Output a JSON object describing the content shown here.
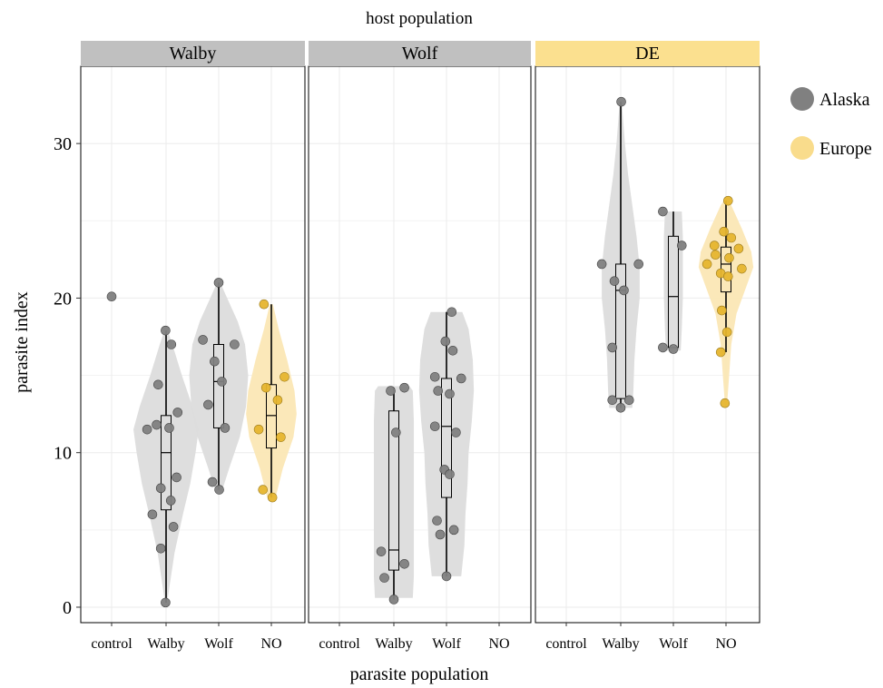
{
  "chart_data": {
    "type": "violin-box-scatter",
    "title": "host population",
    "xlabel": "parasite population",
    "ylabel": "parasite index",
    "ylim": [
      -1,
      35
    ],
    "yticks": [
      0,
      10,
      20,
      30
    ],
    "categories": [
      "control",
      "Walby",
      "Wolf",
      "NO"
    ],
    "grid": true,
    "legend": {
      "position": "right",
      "entries": [
        {
          "name": "Alaska",
          "color": "#808080"
        },
        {
          "name": "Europe",
          "color": "#f9dc8c"
        }
      ]
    },
    "colors": {
      "alaska_point": "#808080",
      "europe_point": "#e6b52e",
      "alaska_violin": "#dcdcdc",
      "europe_violin": "#fbe7b5",
      "strip_gray": "#c0c0c0",
      "strip_europe": "#fbe08f"
    },
    "panels": [
      {
        "host": "Walby",
        "strip": "gray",
        "groups": [
          {
            "category": "control",
            "origin": "Alaska",
            "points": [
              [
                0,
                20.1
              ]
            ]
          },
          {
            "category": "Walby",
            "origin": "Alaska",
            "box": {
              "min": 0.3,
              "q1": 6.3,
              "median": 10.0,
              "q3": 12.4,
              "max": 17.9
            },
            "violin": [
              [
                0.3,
                0.02
              ],
              [
                3.5,
                0.16
              ],
              [
                6.0,
                0.32
              ],
              [
                8.0,
                0.46
              ],
              [
                10.0,
                0.56
              ],
              [
                11.5,
                0.62
              ],
              [
                13.0,
                0.5
              ],
              [
                15.0,
                0.3
              ],
              [
                17.0,
                0.12
              ],
              [
                17.9,
                0.03
              ]
            ],
            "points": [
              [
                -0.01,
                17.9
              ],
              [
                0.1,
                17.0
              ],
              [
                -0.15,
                14.4
              ],
              [
                -0.18,
                11.8
              ],
              [
                -0.36,
                11.5
              ],
              [
                0.06,
                11.6
              ],
              [
                0.22,
                12.6
              ],
              [
                0.2,
                8.4
              ],
              [
                -0.1,
                7.7
              ],
              [
                0.09,
                6.9
              ],
              [
                -0.26,
                6.0
              ],
              [
                0.14,
                5.2
              ],
              [
                -0.1,
                3.8
              ],
              [
                -0.01,
                0.3
              ]
            ]
          },
          {
            "category": "Wolf",
            "origin": "Alaska",
            "box": {
              "min": 7.6,
              "q1": 11.6,
              "median": 14.6,
              "q3": 17.0,
              "max": 21.0
            },
            "violin": [
              [
                7.5,
                0.06
              ],
              [
                9.0,
                0.2
              ],
              [
                11.0,
                0.4
              ],
              [
                13.0,
                0.52
              ],
              [
                15.0,
                0.56
              ],
              [
                17.0,
                0.5
              ],
              [
                18.5,
                0.36
              ],
              [
                20.0,
                0.16
              ],
              [
                21.0,
                0.03
              ]
            ],
            "points": [
              [
                0.0,
                21.0
              ],
              [
                -0.3,
                17.3
              ],
              [
                0.3,
                17.0
              ],
              [
                -0.08,
                15.9
              ],
              [
                0.06,
                14.6
              ],
              [
                -0.2,
                13.1
              ],
              [
                0.12,
                11.6
              ],
              [
                -0.12,
                8.1
              ],
              [
                0.01,
                7.6
              ]
            ]
          },
          {
            "category": "NO",
            "origin": "Europe",
            "box": {
              "min": 7.1,
              "q1": 10.3,
              "median": 12.4,
              "q3": 14.4,
              "max": 19.6
            },
            "violin": [
              [
                7.1,
                0.08
              ],
              [
                9.0,
                0.22
              ],
              [
                11.0,
                0.42
              ],
              [
                12.5,
                0.48
              ],
              [
                14.0,
                0.44
              ],
              [
                16.0,
                0.3
              ],
              [
                18.0,
                0.14
              ],
              [
                19.6,
                0.03
              ]
            ],
            "points": [
              [
                -0.14,
                19.6
              ],
              [
                0.25,
                14.9
              ],
              [
                -0.1,
                14.2
              ],
              [
                0.12,
                13.4
              ],
              [
                -0.24,
                11.5
              ],
              [
                0.18,
                11.0
              ],
              [
                -0.16,
                7.6
              ],
              [
                0.02,
                7.1
              ]
            ]
          }
        ]
      },
      {
        "host": "Wolf",
        "strip": "gray",
        "groups": [
          {
            "category": "Walby",
            "origin": "Alaska",
            "box": {
              "min": 0.5,
              "q1": 2.4,
              "median": 3.7,
              "q3": 12.7,
              "max": 14.2
            },
            "violin": [
              [
                0.6,
                0.36
              ],
              [
                2.0,
                0.38
              ],
              [
                4.0,
                0.38
              ],
              [
                6.0,
                0.38
              ],
              [
                8.0,
                0.38
              ],
              [
                10.0,
                0.38
              ],
              [
                12.0,
                0.38
              ],
              [
                14.0,
                0.36
              ],
              [
                14.3,
                0.3
              ]
            ],
            "points": [
              [
                0.2,
                14.2
              ],
              [
                -0.06,
                14.0
              ],
              [
                0.04,
                11.3
              ],
              [
                -0.24,
                3.6
              ],
              [
                0.2,
                2.8
              ],
              [
                -0.18,
                1.9
              ],
              [
                0.0,
                0.5
              ]
            ]
          },
          {
            "category": "Wolf",
            "origin": "Alaska",
            "box": {
              "min": 2.0,
              "q1": 7.1,
              "median": 11.7,
              "q3": 14.8,
              "max": 19.1
            },
            "violin": [
              [
                2.0,
                0.28
              ],
              [
                4.0,
                0.34
              ],
              [
                6.0,
                0.36
              ],
              [
                8.0,
                0.4
              ],
              [
                10.0,
                0.42
              ],
              [
                12.0,
                0.48
              ],
              [
                14.0,
                0.52
              ],
              [
                16.0,
                0.5
              ],
              [
                18.0,
                0.42
              ],
              [
                19.1,
                0.3
              ]
            ],
            "points": [
              [
                0.1,
                19.1
              ],
              [
                -0.02,
                17.2
              ],
              [
                0.12,
                16.6
              ],
              [
                -0.22,
                14.9
              ],
              [
                0.28,
                14.8
              ],
              [
                -0.16,
                14.0
              ],
              [
                0.06,
                13.8
              ],
              [
                -0.22,
                11.7
              ],
              [
                0.18,
                11.3
              ],
              [
                -0.04,
                8.9
              ],
              [
                0.06,
                8.6
              ],
              [
                -0.18,
                5.6
              ],
              [
                -0.12,
                4.7
              ],
              [
                0.14,
                5.0
              ],
              [
                0.0,
                2.0
              ]
            ]
          }
        ]
      },
      {
        "host": "DE",
        "strip": "europe",
        "groups": [
          {
            "category": "Walby",
            "origin": "Alaska",
            "box": {
              "min": 12.9,
              "q1": 13.5,
              "median": 20.5,
              "q3": 22.2,
              "max": 32.7
            },
            "violin": [
              [
                12.9,
                0.22
              ],
              [
                14.0,
                0.24
              ],
              [
                16.0,
                0.26
              ],
              [
                18.0,
                0.3
              ],
              [
                20.0,
                0.36
              ],
              [
                22.0,
                0.36
              ],
              [
                24.0,
                0.3
              ],
              [
                26.0,
                0.22
              ],
              [
                28.0,
                0.14
              ],
              [
                30.0,
                0.08
              ],
              [
                32.7,
                0.02
              ]
            ],
            "points": [
              [
                0.01,
                32.7
              ],
              [
                -0.36,
                22.2
              ],
              [
                0.34,
                22.2
              ],
              [
                -0.12,
                21.1
              ],
              [
                0.06,
                20.5
              ],
              [
                -0.16,
                16.8
              ],
              [
                -0.16,
                13.4
              ],
              [
                0.16,
                13.4
              ],
              [
                0.0,
                12.9
              ]
            ]
          },
          {
            "category": "Wolf",
            "origin": "Alaska",
            "box": {
              "min": 16.8,
              "q1": 16.8,
              "median": 20.1,
              "q3": 24.0,
              "max": 25.6
            },
            "violin": [
              [
                16.6,
                0.14
              ],
              [
                18.0,
                0.16
              ],
              [
                20.0,
                0.18
              ],
              [
                22.0,
                0.18
              ],
              [
                24.0,
                0.18
              ],
              [
                25.6,
                0.16
              ]
            ],
            "points": [
              [
                -0.2,
                25.6
              ],
              [
                0.16,
                23.4
              ],
              [
                -0.2,
                16.8
              ],
              [
                0.0,
                16.7
              ]
            ]
          },
          {
            "category": "NO",
            "origin": "Europe",
            "box": {
              "min": 16.5,
              "q1": 20.4,
              "median": 22.2,
              "q3": 23.3,
              "max": 26.3
            },
            "violin": [
              [
                13.1,
                0.02
              ],
              [
                15.0,
                0.06
              ],
              [
                17.0,
                0.1
              ],
              [
                19.0,
                0.2
              ],
              [
                20.5,
                0.36
              ],
              [
                22.0,
                0.52
              ],
              [
                23.0,
                0.48
              ],
              [
                24.5,
                0.3
              ],
              [
                26.0,
                0.1
              ],
              [
                26.3,
                0.04
              ]
            ],
            "points": [
              [
                0.04,
                26.3
              ],
              [
                -0.04,
                24.3
              ],
              [
                0.1,
                23.9
              ],
              [
                -0.22,
                23.4
              ],
              [
                0.24,
                23.2
              ],
              [
                -0.36,
                22.2
              ],
              [
                -0.2,
                22.8
              ],
              [
                0.06,
                22.6
              ],
              [
                -0.1,
                21.6
              ],
              [
                0.04,
                21.4
              ],
              [
                0.3,
                21.9
              ],
              [
                -0.08,
                19.2
              ],
              [
                0.02,
                17.8
              ],
              [
                -0.1,
                16.5
              ],
              [
                -0.02,
                13.2
              ]
            ]
          }
        ]
      }
    ]
  }
}
